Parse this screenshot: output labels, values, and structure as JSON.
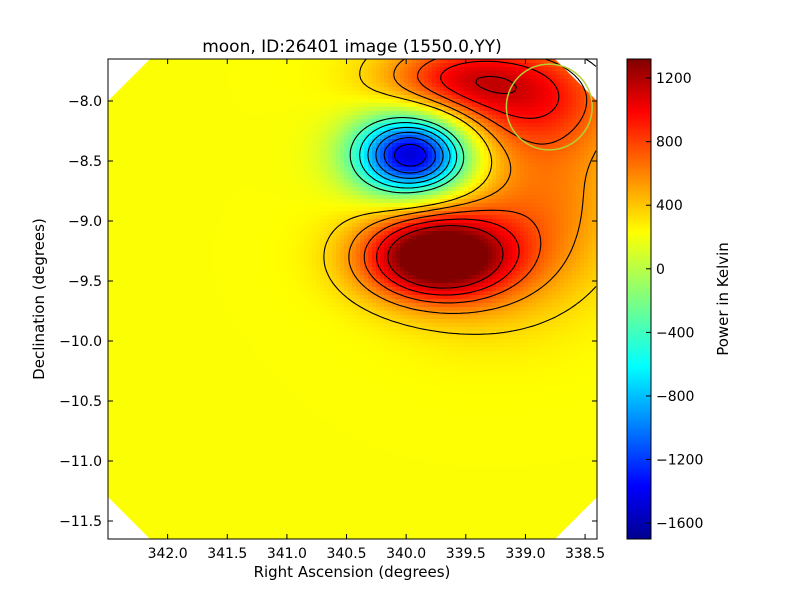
{
  "chart_data": {
    "type": "heatmap",
    "title": "moon, ID:26401 image (1550.0,YY)",
    "xlabel": "Right Ascension (degrees)",
    "ylabel": "Declination (degrees)",
    "xlim": [
      342.5,
      338.4
    ],
    "ylim": [
      -11.65,
      -7.65
    ],
    "x_ticks": [
      342.0,
      341.5,
      341.0,
      340.5,
      340.0,
      339.5,
      339.0,
      338.5
    ],
    "x_tick_labels": [
      "342.0",
      "341.5",
      "341.0",
      "340.5",
      "340.0",
      "339.5",
      "339.0",
      "338.5"
    ],
    "y_ticks": [
      -8.0,
      -8.5,
      -9.0,
      -9.5,
      -10.0,
      -10.5,
      -11.0,
      -11.5
    ],
    "y_tick_labels": [
      "−8.0",
      "−8.5",
      "−9.0",
      "−9.5",
      "−10.0",
      "−10.5",
      "−11.0",
      "−11.5"
    ],
    "colorbar": {
      "label": "Power in Kelvin",
      "colormap": "jet",
      "range": [
        -1700,
        1320
      ],
      "ticks": [
        1200,
        800,
        400,
        0,
        -400,
        -800,
        -1200,
        -1600
      ],
      "tick_labels": [
        "1200",
        "800",
        "400",
        "0",
        "−400",
        "−800",
        "−1200",
        "−1600"
      ]
    },
    "background_level": 180,
    "features": [
      {
        "kind": "negative-peak",
        "ra": 339.95,
        "dec": -8.45,
        "value": -1700,
        "sigma_ra": 0.33,
        "sigma_dec": 0.23
      },
      {
        "kind": "positive-peak",
        "ra": 339.75,
        "dec": -9.3,
        "value": 1320,
        "sigma_ra": 0.42,
        "sigma_dec": 0.24
      },
      {
        "kind": "positive-extension",
        "ra": 339.3,
        "dec": -9.25,
        "value": 300,
        "sigma_ra": 0.55,
        "sigma_dec": 0.45
      },
      {
        "kind": "positive-region",
        "ra": 339.0,
        "dec": -7.95,
        "value": 650,
        "sigma_ra": 0.55,
        "sigma_dec": 0.32
      },
      {
        "kind": "positive-region",
        "ra": 339.6,
        "dec": -7.8,
        "value": 500,
        "sigma_ra": 0.45,
        "sigma_dec": 0.2
      },
      {
        "kind": "positive-region",
        "ra": 338.75,
        "dec": -8.7,
        "value": 280,
        "sigma_ra": 0.45,
        "sigma_dec": 0.5
      }
    ],
    "contour_levels": [
      -1500,
      -1300,
      -1100,
      -900,
      -700,
      -500,
      -300,
      300,
      500,
      700,
      900,
      1100
    ],
    "moon_circle": {
      "ra": 338.8,
      "dec": -8.05,
      "radius_deg": 0.36,
      "color": "#b2d235"
    },
    "grid": false,
    "footprint": "octagonal"
  }
}
